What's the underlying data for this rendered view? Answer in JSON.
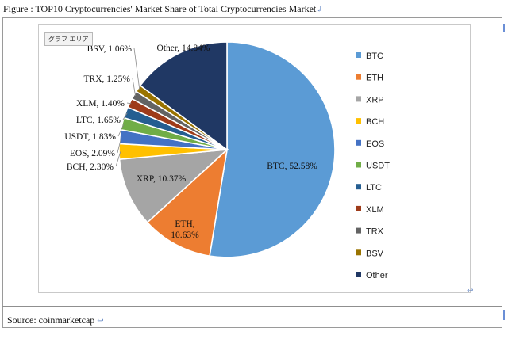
{
  "caption": "Figure : TOP10 Cryptocurrencies' Market Share of Total Cryptocurrencies Market",
  "tooltip": "グラフ エリア",
  "source": "Source: coinmarketcap",
  "chart_data": {
    "type": "pie",
    "title": "",
    "legend_position": "right",
    "slices": [
      {
        "name": "BTC",
        "value": 52.58,
        "label": "BTC, 52.58%",
        "color": "#5b9bd5"
      },
      {
        "name": "ETH",
        "value": 10.63,
        "label": "ETH, 10.63%",
        "color": "#ed7d31"
      },
      {
        "name": "XRP",
        "value": 10.37,
        "label": "XRP, 10.37%",
        "color": "#a5a5a5"
      },
      {
        "name": "BCH",
        "value": 2.3,
        "label": "BCH, 2.30%",
        "color": "#ffc000"
      },
      {
        "name": "EOS",
        "value": 2.09,
        "label": "EOS, 2.09%",
        "color": "#4472c4"
      },
      {
        "name": "USDT",
        "value": 1.83,
        "label": "USDT, 1.83%",
        "color": "#70ad47"
      },
      {
        "name": "LTC",
        "value": 1.65,
        "label": "LTC, 1.65%",
        "color": "#255e91"
      },
      {
        "name": "XLM",
        "value": 1.4,
        "label": "XLM, 1.40%",
        "color": "#9e3b1a"
      },
      {
        "name": "TRX",
        "value": 1.25,
        "label": "TRX, 1.25%",
        "color": "#636363"
      },
      {
        "name": "BSV",
        "value": 1.06,
        "label": "BSV, 1.06%",
        "color": "#997300"
      },
      {
        "name": "Other",
        "value": 14.84,
        "label": "Other, 14.84%",
        "color": "#203864"
      }
    ]
  }
}
